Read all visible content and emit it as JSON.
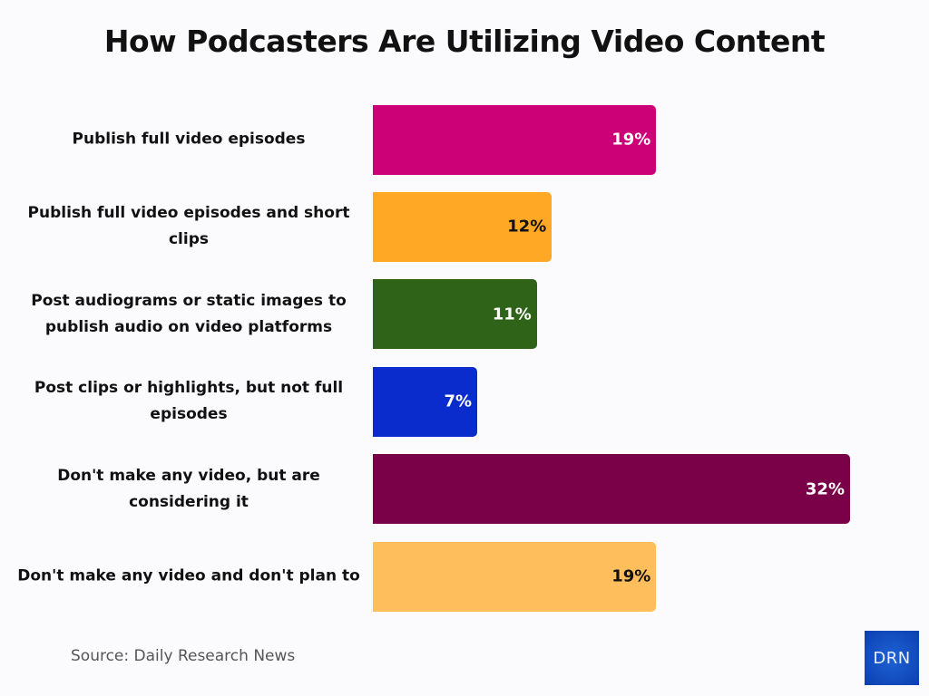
{
  "chart_data": {
    "type": "bar",
    "orientation": "horizontal",
    "title": "How Podcasters Are Utilizing Video Content",
    "categories": [
      "Publish full video episodes",
      "Publish full video episodes and short clips",
      "Post audiograms or static images to publish audio on video platforms",
      "Post clips or highlights, but not full episodes",
      "Don't make any video, but are considering it",
      "Don't make any video and don't plan to"
    ],
    "values": [
      19,
      12,
      11,
      7,
      32,
      19
    ],
    "data_labels": [
      "19%",
      "12%",
      "11%",
      "7%",
      "32%",
      "19%"
    ],
    "colors": [
      "#cc0077",
      "#ffa826",
      "#2e6318",
      "#0a2ccc",
      "#7a0048",
      "#ffbe5c"
    ],
    "label_colors": [
      "#ffffff",
      "#111111",
      "#ffffff",
      "#ffffff",
      "#ffffff",
      "#111111"
    ],
    "unit": "%",
    "grid": false,
    "legend": "none"
  },
  "footer": {
    "source": "Source: Daily Research News",
    "logo": "DRN"
  }
}
